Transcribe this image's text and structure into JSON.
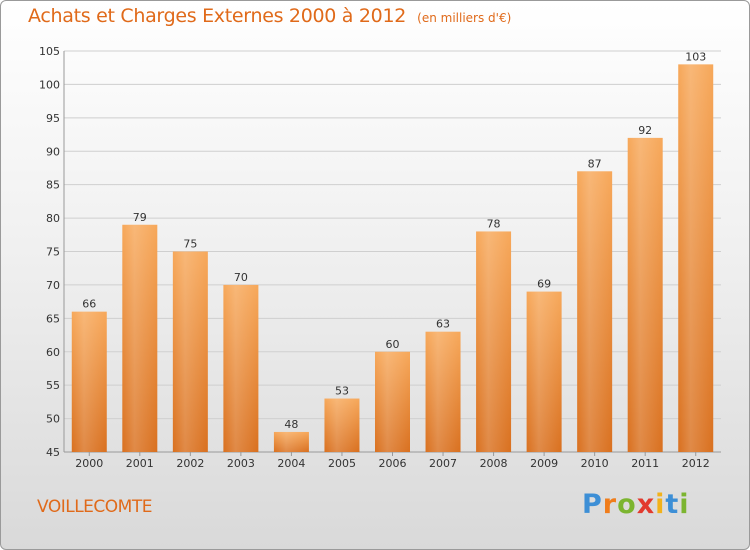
{
  "title": "Achats et Charges Externes 2000 à 2012",
  "subtitle": "(en milliers d'€)",
  "commune": "VOILLECOMTE",
  "brand": {
    "letters": [
      "P",
      "r",
      "o",
      "x",
      "i",
      "t",
      "i"
    ],
    "colors": [
      "#3d8fd6",
      "#f07d1b",
      "#7cb530",
      "#e23a2e",
      "#f2b21b",
      "#3d8fd6",
      "#7cb530"
    ]
  },
  "colors": {
    "bar_light": "#f7a85a",
    "bar_dark": "#d9701f",
    "grid": "#cfcfcf",
    "text": "#333333",
    "accent": "#e06a1a"
  },
  "chart_data": {
    "type": "bar",
    "title": "Achats et Charges Externes 2000 à 2012",
    "subtitle": "(en milliers d'€)",
    "categories": [
      "2000",
      "2001",
      "2002",
      "2003",
      "2004",
      "2005",
      "2006",
      "2007",
      "2008",
      "2009",
      "2010",
      "2011",
      "2012"
    ],
    "values": [
      66,
      79,
      75,
      70,
      48,
      53,
      60,
      63,
      78,
      69,
      87,
      92,
      103
    ],
    "ylim": [
      45,
      105
    ],
    "yticks": [
      45,
      50,
      55,
      60,
      65,
      70,
      75,
      80,
      85,
      90,
      95,
      100,
      105
    ],
    "grid": true,
    "legend": "none"
  }
}
